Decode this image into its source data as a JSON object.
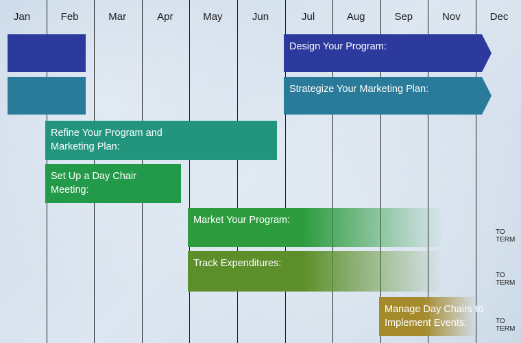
{
  "chart_data": {
    "type": "gantt",
    "months": [
      "Jan",
      "Feb",
      "Mar",
      "Apr",
      "May",
      "Jun",
      "Jul",
      "Aug",
      "Sep",
      "Nov",
      "Dec"
    ],
    "tasks": [
      {
        "label": "Design Your Program:",
        "segments": [
          [
            0,
            1.8
          ],
          [
            5.8,
            10.3
          ]
        ],
        "color": "#2b3a9c",
        "arrow_end": true,
        "fade": false
      },
      {
        "label": "Strategize Your Marketing Plan:",
        "segments": [
          [
            0,
            1.8
          ],
          [
            5.8,
            10.3
          ]
        ],
        "color": "#2a7a99",
        "arrow_end": true,
        "fade": false
      },
      {
        "label": "Refine Your Program and\nMarketing Plan:",
        "segments": [
          [
            0.8,
            5.8
          ]
        ],
        "color": "#23957f",
        "arrow_end": false,
        "fade": false
      },
      {
        "label": "Set Up a Day Chair\nMeeting:",
        "segments": [
          [
            0.8,
            3.8
          ]
        ],
        "color": "#239a4a",
        "arrow_end": false,
        "fade": false
      },
      {
        "label": "Market Your Program:",
        "segments": [
          [
            3.8,
            9.3
          ]
        ],
        "color": "#2c9c3e",
        "arrow_end": false,
        "fade": true,
        "end_label": "TO\nTERM"
      },
      {
        "label": "Track Expenditures:",
        "segments": [
          [
            3.8,
            9.3
          ]
        ],
        "color": "#5c8f2a",
        "arrow_end": false,
        "fade": true,
        "end_label": "TO\nTERM"
      },
      {
        "label": "Manage Day Chairs to\nImplement Events:",
        "segments": [
          [
            7.8,
            10.0
          ]
        ],
        "color": "#a58a2c",
        "arrow_end": false,
        "fade": true,
        "end_label": "TO\nTERM"
      }
    ]
  }
}
